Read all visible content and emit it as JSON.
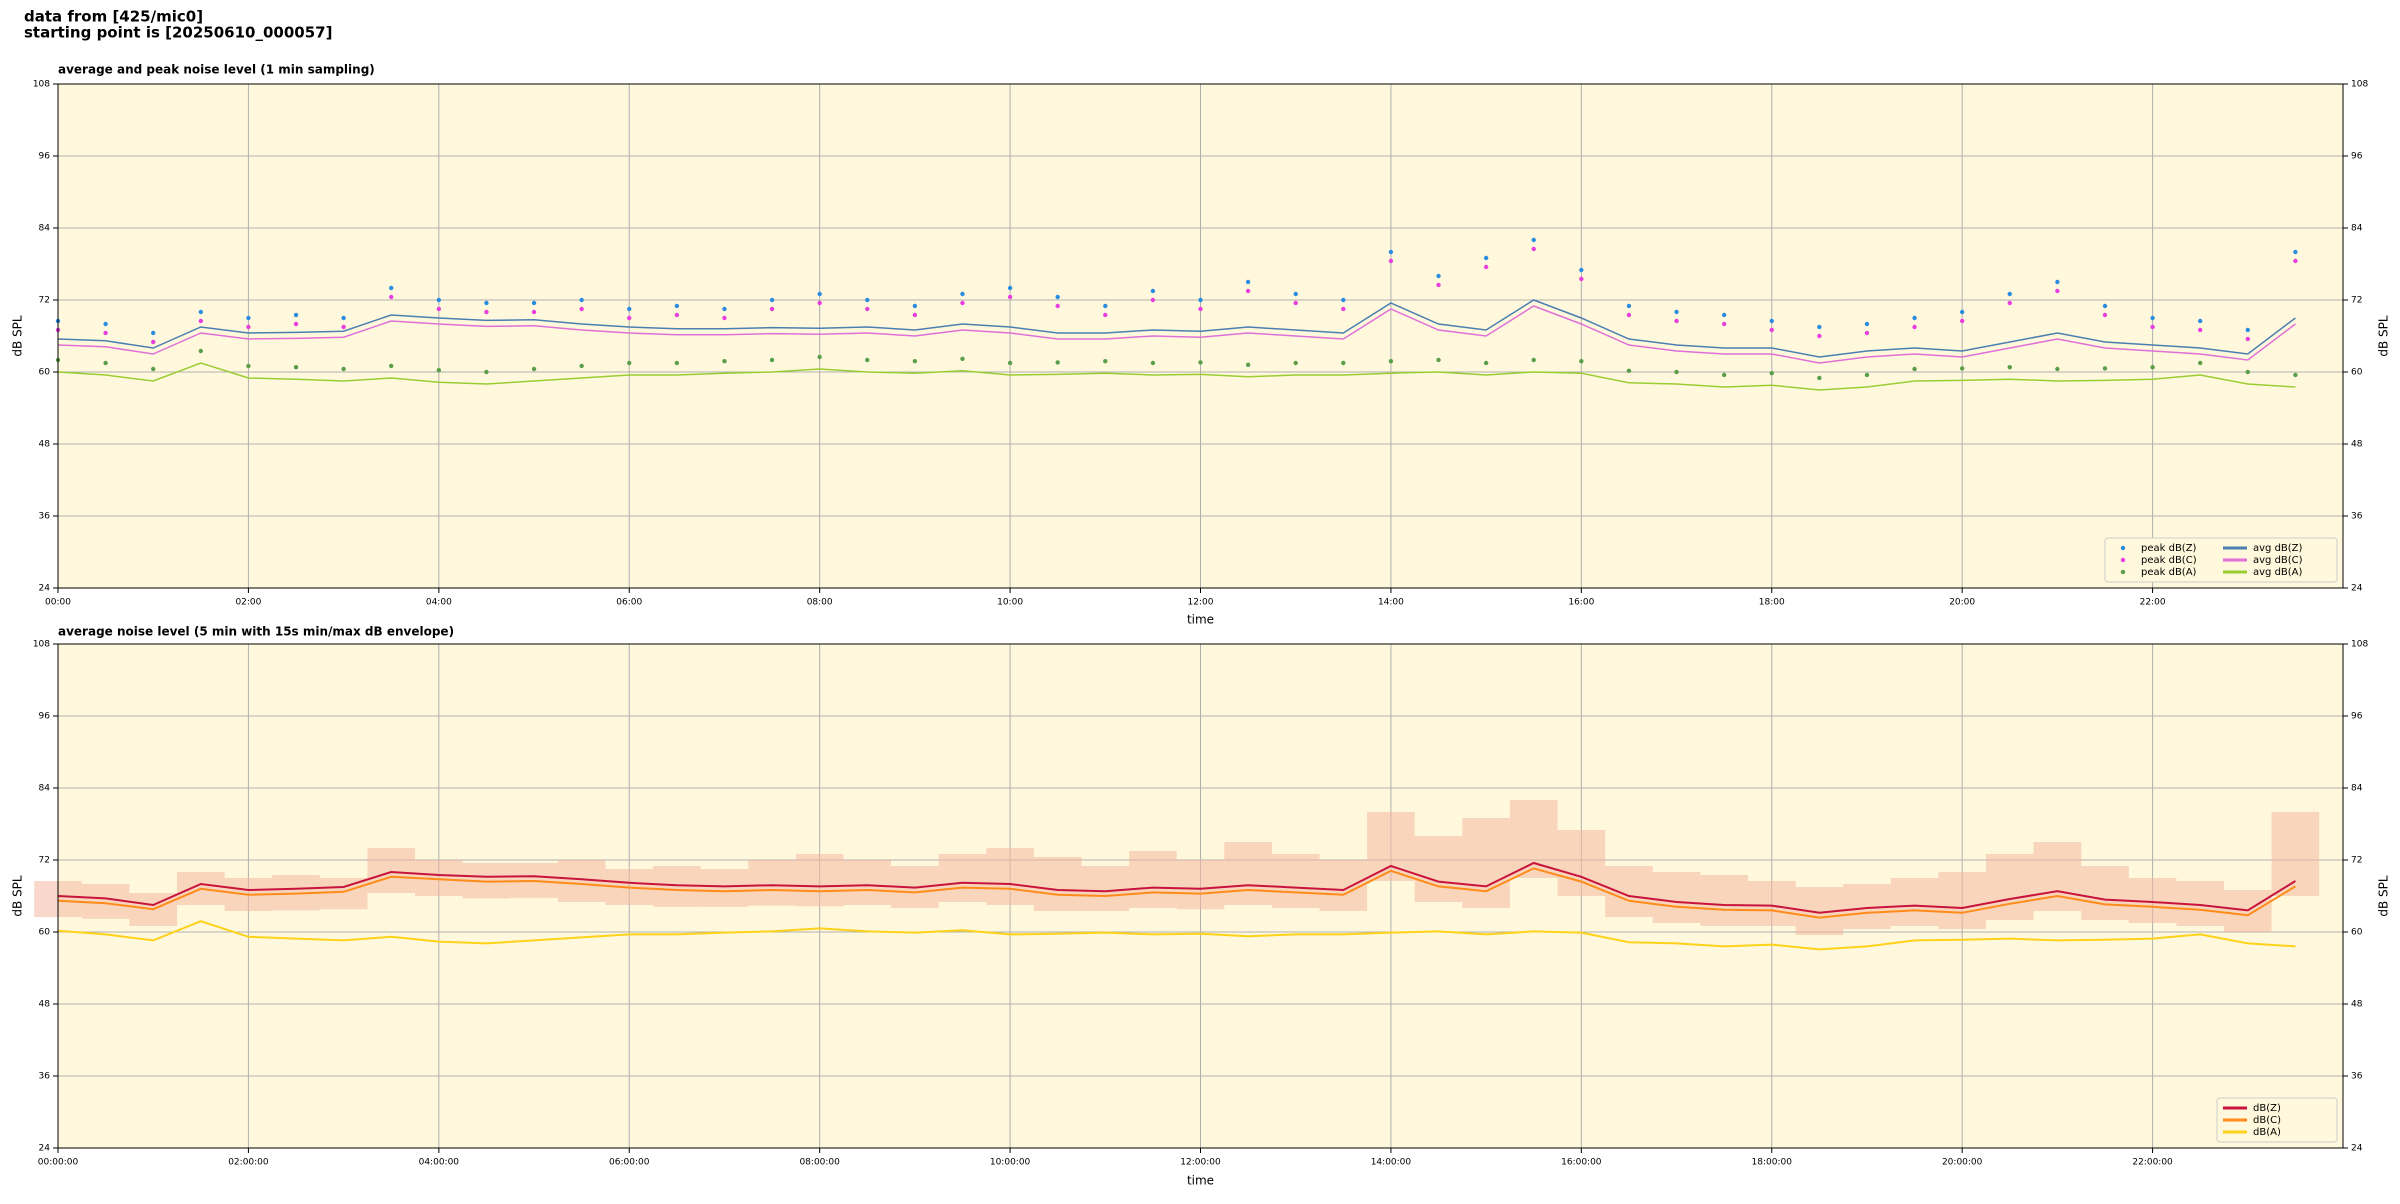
{
  "header": {
    "source": "data from [425/mic0]",
    "start": "starting point is [20250610_000057]"
  },
  "chart_data": [
    {
      "type": "line",
      "title": "average and peak noise level (1 min sampling)",
      "xlabel": "time",
      "ylabel": "dB SPL",
      "x": [
        "00:00",
        "00:30",
        "01:00",
        "01:30",
        "02:00",
        "02:30",
        "03:00",
        "03:30",
        "04:00",
        "04:30",
        "05:00",
        "05:30",
        "06:00",
        "06:30",
        "07:00",
        "07:30",
        "08:00",
        "08:30",
        "09:00",
        "09:30",
        "10:00",
        "10:30",
        "11:00",
        "11:30",
        "12:00",
        "12:30",
        "13:00",
        "13:30",
        "14:00",
        "14:30",
        "15:00",
        "15:30",
        "16:00",
        "16:30",
        "17:00",
        "17:30",
        "18:00",
        "18:30",
        "19:00",
        "19:30",
        "20:00",
        "20:30",
        "21:00",
        "21:30",
        "22:00",
        "22:30",
        "23:00",
        "23:30"
      ],
      "xlim": [
        "00:00",
        "24:00"
      ],
      "xticks": [
        "00:00",
        "02:00",
        "04:00",
        "06:00",
        "08:00",
        "10:00",
        "12:00",
        "14:00",
        "16:00",
        "18:00",
        "20:00",
        "22:00"
      ],
      "ylim": [
        24,
        108
      ],
      "yticks": [
        24,
        36,
        48,
        60,
        72,
        84,
        96,
        108
      ],
      "grid": true,
      "background": "#fff8dc",
      "legend": "lower right",
      "legend_columns": 2,
      "series": [
        {
          "name": "peak dB(Z)",
          "style": "dots",
          "color": "#2a8ce0",
          "values": [
            68.5,
            68.0,
            66.5,
            70.0,
            69.0,
            69.5,
            69.0,
            74.0,
            72.0,
            71.5,
            71.5,
            72.0,
            70.5,
            71.0,
            70.5,
            72.0,
            73.0,
            72.0,
            71.0,
            73.0,
            74.0,
            72.5,
            71.0,
            73.5,
            72.0,
            75.0,
            73.0,
            72.0,
            80.0,
            76.0,
            79.0,
            82.0,
            77.0,
            71.0,
            70.0,
            69.5,
            68.5,
            67.5,
            68.0,
            69.0,
            70.0,
            73.0,
            75.0,
            71.0,
            69.0,
            68.5,
            67.0,
            80.0
          ]
        },
        {
          "name": "peak dB(C)",
          "style": "dots",
          "color": "#e83ee0",
          "values": [
            67.0,
            66.5,
            65.0,
            68.5,
            67.5,
            68.0,
            67.5,
            72.5,
            70.5,
            70.0,
            70.0,
            70.5,
            69.0,
            69.5,
            69.0,
            70.5,
            71.5,
            70.5,
            69.5,
            71.5,
            72.5,
            71.0,
            69.5,
            72.0,
            70.5,
            73.5,
            71.5,
            70.5,
            78.5,
            74.5,
            77.5,
            80.5,
            75.5,
            69.5,
            68.5,
            68.0,
            67.0,
            66.0,
            66.5,
            67.5,
            68.5,
            71.5,
            73.5,
            69.5,
            67.5,
            67.0,
            65.5,
            78.5
          ]
        },
        {
          "name": "peak dB(A)",
          "style": "dots",
          "color": "#5a9e4a",
          "values": [
            62.0,
            61.5,
            60.5,
            63.5,
            61.0,
            60.8,
            60.5,
            61.0,
            60.3,
            60.0,
            60.5,
            61.0,
            61.5,
            61.5,
            61.8,
            62.0,
            62.5,
            62.0,
            61.8,
            62.2,
            61.5,
            61.6,
            61.8,
            61.5,
            61.6,
            61.2,
            61.5,
            61.5,
            61.8,
            62.0,
            61.5,
            62.0,
            61.8,
            60.2,
            60.0,
            59.5,
            59.8,
            59.0,
            59.5,
            60.5,
            60.6,
            60.8,
            60.5,
            60.6,
            60.8,
            61.5,
            60.0,
            59.5
          ]
        },
        {
          "name": "avg dB(Z)",
          "style": "line",
          "color": "#4a7fb0",
          "values": [
            65.5,
            65.2,
            64.0,
            67.5,
            66.5,
            66.6,
            66.8,
            69.5,
            69.0,
            68.6,
            68.7,
            68.0,
            67.5,
            67.2,
            67.2,
            67.4,
            67.3,
            67.5,
            67.0,
            68.0,
            67.5,
            66.5,
            66.5,
            67.0,
            66.8,
            67.5,
            67.0,
            66.5,
            71.5,
            68.0,
            67.0,
            72.0,
            69.0,
            65.5,
            64.5,
            64.0,
            64.0,
            62.5,
            63.5,
            64.0,
            63.5,
            65.0,
            66.5,
            65.0,
            64.5,
            64.0,
            63.0,
            69.0
          ]
        },
        {
          "name": "avg dB(C)",
          "style": "line",
          "color": "#e070d8",
          "values": [
            64.5,
            64.2,
            63.0,
            66.5,
            65.5,
            65.6,
            65.8,
            68.5,
            68.0,
            67.6,
            67.7,
            67.0,
            66.5,
            66.2,
            66.2,
            66.4,
            66.3,
            66.5,
            66.0,
            67.0,
            66.5,
            65.5,
            65.5,
            66.0,
            65.8,
            66.5,
            66.0,
            65.5,
            70.5,
            67.0,
            66.0,
            71.0,
            68.0,
            64.5,
            63.5,
            63.0,
            63.0,
            61.5,
            62.5,
            63.0,
            62.5,
            64.0,
            65.5,
            64.0,
            63.5,
            63.0,
            62.0,
            68.0
          ]
        },
        {
          "name": "avg dB(A)",
          "style": "line",
          "color": "#9acd32",
          "values": [
            60.0,
            59.5,
            58.5,
            61.5,
            59.0,
            58.8,
            58.5,
            59.0,
            58.3,
            58.0,
            58.5,
            59.0,
            59.5,
            59.5,
            59.8,
            60.0,
            60.5,
            60.0,
            59.8,
            60.2,
            59.5,
            59.6,
            59.8,
            59.5,
            59.6,
            59.2,
            59.5,
            59.5,
            59.8,
            60.0,
            59.5,
            60.0,
            59.8,
            58.2,
            58.0,
            57.5,
            57.8,
            57.0,
            57.5,
            58.5,
            58.6,
            58.8,
            58.5,
            58.6,
            58.8,
            59.5,
            58.0,
            57.5
          ]
        }
      ]
    },
    {
      "type": "line",
      "title": "average noise level (5 min with 15s min/max dB envelope)",
      "xlabel": "time",
      "ylabel": "dB SPL",
      "x": [
        "00:00:00",
        "00:30:00",
        "01:00:00",
        "01:30:00",
        "02:00:00",
        "02:30:00",
        "03:00:00",
        "03:30:00",
        "04:00:00",
        "04:30:00",
        "05:00:00",
        "05:30:00",
        "06:00:00",
        "06:30:00",
        "07:00:00",
        "07:30:00",
        "08:00:00",
        "08:30:00",
        "09:00:00",
        "09:30:00",
        "10:00:00",
        "10:30:00",
        "11:00:00",
        "11:30:00",
        "12:00:00",
        "12:30:00",
        "13:00:00",
        "13:30:00",
        "14:00:00",
        "14:30:00",
        "15:00:00",
        "15:30:00",
        "16:00:00",
        "16:30:00",
        "17:00:00",
        "17:30:00",
        "18:00:00",
        "18:30:00",
        "19:00:00",
        "19:30:00",
        "20:00:00",
        "20:30:00",
        "21:00:00",
        "21:30:00",
        "22:00:00",
        "22:30:00",
        "23:00:00",
        "23:30:00"
      ],
      "xlim": [
        "00:00:00",
        "24:00:00"
      ],
      "xticks": [
        "00:00:00",
        "02:00:00",
        "04:00:00",
        "06:00:00",
        "08:00:00",
        "10:00:00",
        "12:00:00",
        "14:00:00",
        "16:00:00",
        "18:00:00",
        "20:00:00",
        "22:00:00"
      ],
      "ylim": [
        24,
        108
      ],
      "yticks": [
        24,
        36,
        48,
        60,
        72,
        84,
        96,
        108
      ],
      "grid": true,
      "background": "#fff8dc",
      "legend": "lower right",
      "legend_columns": 1,
      "envelope": {
        "color": "#f4b8a0",
        "low": [
          62.5,
          62.2,
          61.0,
          64.5,
          63.5,
          63.6,
          63.8,
          66.5,
          66.0,
          65.6,
          65.7,
          65.0,
          64.5,
          64.2,
          64.2,
          64.4,
          64.3,
          64.5,
          64.0,
          65.0,
          64.5,
          63.5,
          63.5,
          64.0,
          63.8,
          64.5,
          64.0,
          63.5,
          68.5,
          65.0,
          64.0,
          69.0,
          66.0,
          62.5,
          61.5,
          61.0,
          61.0,
          59.5,
          60.5,
          61.0,
          60.5,
          62.0,
          63.5,
          62.0,
          61.5,
          61.0,
          60.0,
          66.0
        ],
        "high": [
          68.5,
          68.0,
          66.5,
          70.0,
          69.0,
          69.5,
          69.0,
          74.0,
          72.0,
          71.5,
          71.5,
          72.0,
          70.5,
          71.0,
          70.5,
          72.0,
          73.0,
          72.0,
          71.0,
          73.0,
          74.0,
          72.5,
          71.0,
          73.5,
          72.0,
          75.0,
          73.0,
          72.0,
          80.0,
          76.0,
          79.0,
          82.0,
          77.0,
          71.0,
          70.0,
          69.5,
          68.5,
          67.5,
          68.0,
          69.0,
          70.0,
          73.0,
          75.0,
          71.0,
          69.0,
          68.5,
          67.0,
          80.0
        ]
      },
      "series": [
        {
          "name": "dB(Z)",
          "style": "line",
          "color": "#c8143c",
          "values": [
            66.0,
            65.6,
            64.5,
            68.0,
            67.0,
            67.2,
            67.5,
            70.0,
            69.5,
            69.2,
            69.3,
            68.8,
            68.2,
            67.8,
            67.6,
            67.8,
            67.6,
            67.8,
            67.4,
            68.2,
            68.0,
            67.0,
            66.8,
            67.4,
            67.2,
            67.8,
            67.4,
            67.0,
            71.0,
            68.4,
            67.6,
            71.5,
            69.2,
            66.0,
            65.0,
            64.5,
            64.4,
            63.2,
            64.0,
            64.4,
            64.0,
            65.5,
            66.8,
            65.4,
            65.0,
            64.5,
            63.6,
            68.5
          ]
        },
        {
          "name": "dB(C)",
          "style": "line",
          "color": "#ff8c1a",
          "values": [
            65.2,
            64.8,
            63.8,
            67.2,
            66.2,
            66.4,
            66.7,
            69.2,
            68.8,
            68.4,
            68.5,
            68.0,
            67.4,
            67.0,
            66.8,
            67.0,
            66.8,
            67.0,
            66.6,
            67.4,
            67.2,
            66.2,
            66.0,
            66.6,
            66.4,
            67.0,
            66.6,
            66.2,
            70.2,
            67.6,
            66.8,
            70.6,
            68.4,
            65.2,
            64.2,
            63.7,
            63.6,
            62.4,
            63.2,
            63.6,
            63.2,
            64.7,
            66.0,
            64.6,
            64.2,
            63.7,
            62.8,
            67.6
          ]
        },
        {
          "name": "dB(A)",
          "style": "line",
          "color": "#ffd21a",
          "values": [
            60.2,
            59.6,
            58.6,
            61.8,
            59.2,
            58.9,
            58.6,
            59.2,
            58.4,
            58.1,
            58.6,
            59.1,
            59.6,
            59.6,
            59.9,
            60.1,
            60.6,
            60.1,
            59.9,
            60.3,
            59.6,
            59.7,
            59.9,
            59.6,
            59.7,
            59.3,
            59.6,
            59.6,
            59.9,
            60.1,
            59.6,
            60.1,
            59.9,
            58.3,
            58.1,
            57.6,
            57.9,
            57.1,
            57.6,
            58.6,
            58.7,
            58.9,
            58.6,
            58.7,
            58.9,
            59.6,
            58.1,
            57.6
          ]
        }
      ]
    }
  ]
}
